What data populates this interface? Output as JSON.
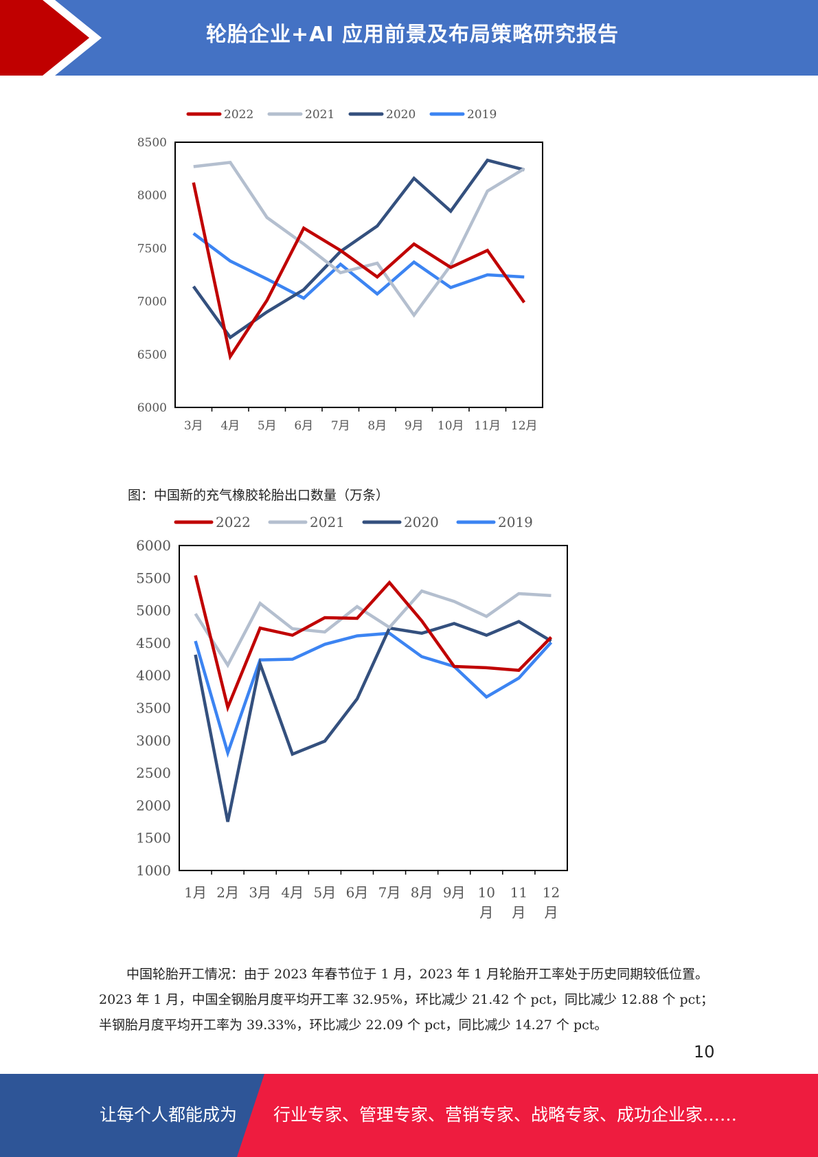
{
  "header": {
    "title": "轮胎企业+AI 应用前景及布局策略研究报告",
    "bar_color": "#4472c4",
    "chevron_color": "#c00000"
  },
  "charts": {
    "chart_data": [
      {
        "type": "line",
        "title": "",
        "categories": [
          "3月",
          "4月",
          "5月",
          "6月",
          "7月",
          "8月",
          "9月",
          "10月",
          "11月",
          "12月"
        ],
        "ylim": [
          6000,
          8500
        ],
        "yticks": [
          "6000",
          "6500",
          "7000",
          "7500",
          "8000",
          "8500"
        ],
        "legend_position": "top",
        "grid": false,
        "series": [
          {
            "name": "2022",
            "color": "#c00000",
            "values": [
              8120,
              6480,
              7010,
              7690,
              7480,
              7230,
              7540,
              7320,
              7480,
              6990
            ]
          },
          {
            "name": "2021",
            "color": "#b4bfcf",
            "values": [
              8270,
              8310,
              7790,
              7540,
              7270,
              7360,
              6870,
              7340,
              8040,
              8250
            ]
          },
          {
            "name": "2020",
            "color": "#34507e",
            "values": [
              7140,
              6660,
              6900,
              7110,
              7470,
              7710,
              8160,
              7850,
              8330,
              8240
            ]
          },
          {
            "name": "2019",
            "color": "#3c84f2",
            "values": [
              7640,
              7380,
              7210,
              7030,
              7350,
              7070,
              7370,
              7130,
              7250,
              7230
            ]
          }
        ]
      },
      {
        "type": "line",
        "title": "图：中国新的充气橡胶轮胎出口数量（万条）",
        "categories": [
          "1月",
          "2月",
          "3月",
          "4月",
          "5月",
          "6月",
          "7月",
          "8月",
          "9月",
          "10月",
          "11月",
          "12月"
        ],
        "category_lines": [
          [
            "1月"
          ],
          [
            "2月"
          ],
          [
            "3月"
          ],
          [
            "4月"
          ],
          [
            "5月"
          ],
          [
            "6月"
          ],
          [
            "7月"
          ],
          [
            "8月"
          ],
          [
            "9月"
          ],
          [
            "10",
            "月"
          ],
          [
            "11",
            "月"
          ],
          [
            "12",
            "月"
          ]
        ],
        "ylim": [
          1000,
          6000
        ],
        "yticks": [
          "1000",
          "1500",
          "2000",
          "2500",
          "3000",
          "3500",
          "4000",
          "4500",
          "5000",
          "5500",
          "6000"
        ],
        "legend_position": "top",
        "grid": false,
        "series": [
          {
            "name": "2022",
            "color": "#c00000",
            "values": [
              5540,
              3510,
              4730,
              4620,
              4890,
              4880,
              5430,
              4840,
              4140,
              4120,
              4080,
              4590
            ]
          },
          {
            "name": "2021",
            "color": "#b4bfcf",
            "values": [
              4950,
              4160,
              5110,
              4720,
              4670,
              5060,
              4740,
              5300,
              5140,
              4910,
              5260,
              5230
            ]
          },
          {
            "name": "2020",
            "color": "#34507e",
            "values": [
              4320,
              1750,
              4180,
              2790,
              2990,
              3640,
              4730,
              4650,
              4800,
              4620,
              4830,
              4530
            ]
          },
          {
            "name": "2019",
            "color": "#3c84f2",
            "values": [
              4530,
              2810,
              4240,
              4250,
              4480,
              4610,
              4650,
              4290,
              4140,
              3670,
              3960,
              4510
            ]
          }
        ]
      }
    ]
  },
  "body": {
    "paragraph": "中国轮胎开工情况：由于 2023 年春节位于 1 月，2023 年 1 月轮胎开工率处于历史同期较低位置。2023 年 1 月，中国全钢胎月度平均开工率 32.95%，环比减少 21.42 个 pct，同比减少 12.88 个 pct；半钢胎月度平均开工率为 39.33%，环比减少 22.09 个 pct，同比减少 14.27 个 pct。"
  },
  "page_number": "10",
  "footer": {
    "left_text": "让每个人都能成为",
    "right_text": "行业专家、管理专家、营销专家、战略专家、成功企业家……",
    "left_color": "#2e5597",
    "right_color": "#ee1c3f"
  }
}
